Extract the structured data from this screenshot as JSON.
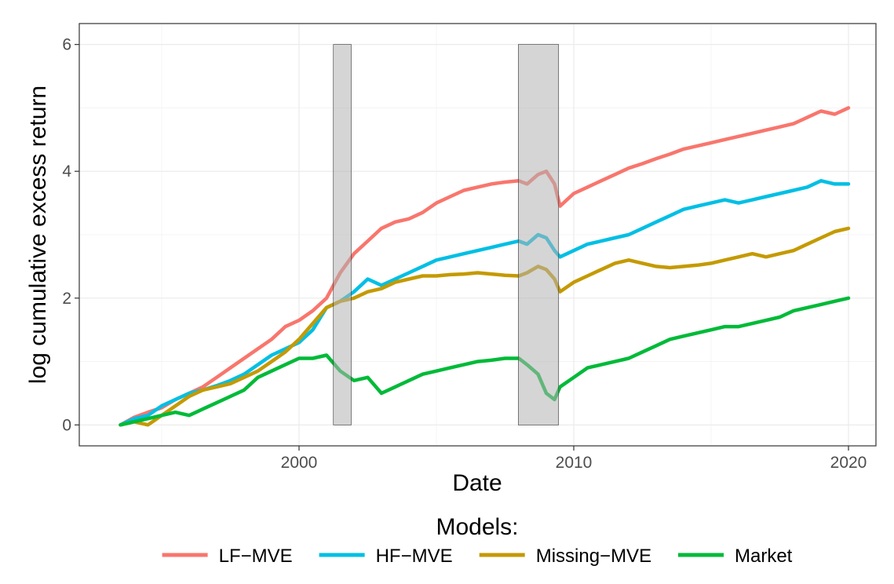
{
  "chart_data": {
    "type": "line",
    "xlabel": "Date",
    "ylabel": "log cumulative excess return",
    "xlim": [
      1992.0,
      2021.0
    ],
    "ylim": [
      -0.33,
      6.33
    ],
    "x_ticks": [
      2000,
      2010,
      2020
    ],
    "x_tick_labels": [
      "2000",
      "2010",
      "2020"
    ],
    "y_ticks": [
      0,
      2,
      4,
      6
    ],
    "y_tick_labels": [
      "0",
      "2",
      "4",
      "6"
    ],
    "grid": true,
    "legend": {
      "title": "Models:",
      "position": "bottom"
    },
    "shaded_regions": [
      {
        "start": 2001.25,
        "end": 2001.9
      },
      {
        "start": 2007.98,
        "end": 2009.45
      }
    ],
    "series": [
      {
        "name": "LF−MVE",
        "color": "#F8766D",
        "x": [
          1993.5,
          1994,
          1994.5,
          1995,
          1995.5,
          1996,
          1996.5,
          1997,
          1997.5,
          1998,
          1998.5,
          1999,
          1999.5,
          2000,
          2000.5,
          2001,
          2001.5,
          2002,
          2002.5,
          2003,
          2003.5,
          2004,
          2004.5,
          2005,
          2005.5,
          2006,
          2006.5,
          2007,
          2007.5,
          2008,
          2008.3,
          2008.7,
          2009,
          2009.3,
          2009.5,
          2010,
          2010.5,
          2011,
          2011.5,
          2012,
          2012.5,
          2013,
          2013.5,
          2014,
          2014.5,
          2015,
          2015.5,
          2016,
          2016.5,
          2017,
          2017.5,
          2018,
          2018.5,
          2019,
          2019.5,
          2020
        ],
        "values": [
          0,
          0.12,
          0.2,
          0.27,
          0.4,
          0.5,
          0.6,
          0.75,
          0.9,
          1.05,
          1.2,
          1.35,
          1.55,
          1.65,
          1.8,
          2.0,
          2.4,
          2.7,
          2.9,
          3.1,
          3.2,
          3.25,
          3.35,
          3.5,
          3.6,
          3.7,
          3.75,
          3.8,
          3.83,
          3.85,
          3.8,
          3.95,
          4.0,
          3.8,
          3.45,
          3.65,
          3.75,
          3.85,
          3.95,
          4.05,
          4.12,
          4.2,
          4.27,
          4.35,
          4.4,
          4.45,
          4.5,
          4.55,
          4.6,
          4.65,
          4.7,
          4.75,
          4.85,
          4.95,
          4.9,
          5.0
        ]
      },
      {
        "name": "HF−MVE",
        "color": "#00BFE4",
        "x": [
          1993.5,
          1994,
          1994.5,
          1995,
          1995.5,
          1996,
          1996.5,
          1997,
          1997.5,
          1998,
          1998.5,
          1999,
          1999.5,
          2000,
          2000.5,
          2001,
          2001.5,
          2002,
          2002.5,
          2003,
          2003.5,
          2004,
          2004.5,
          2005,
          2005.5,
          2006,
          2006.5,
          2007,
          2007.5,
          2008,
          2008.3,
          2008.7,
          2009,
          2009.3,
          2009.5,
          2010,
          2010.5,
          2011,
          2011.5,
          2012,
          2012.5,
          2013,
          2013.5,
          2014,
          2014.5,
          2015,
          2015.5,
          2016,
          2016.5,
          2017,
          2017.5,
          2018,
          2018.5,
          2019,
          2019.5,
          2020
        ],
        "values": [
          0,
          0.1,
          0.15,
          0.3,
          0.4,
          0.5,
          0.55,
          0.62,
          0.7,
          0.8,
          0.95,
          1.1,
          1.2,
          1.3,
          1.5,
          1.85,
          1.95,
          2.1,
          2.3,
          2.2,
          2.3,
          2.4,
          2.5,
          2.6,
          2.65,
          2.7,
          2.75,
          2.8,
          2.85,
          2.9,
          2.85,
          3.0,
          2.95,
          2.75,
          2.65,
          2.75,
          2.85,
          2.9,
          2.95,
          3.0,
          3.1,
          3.2,
          3.3,
          3.4,
          3.45,
          3.5,
          3.55,
          3.5,
          3.55,
          3.6,
          3.65,
          3.7,
          3.75,
          3.85,
          3.8,
          3.8
        ]
      },
      {
        "name": "Missing−MVE",
        "color": "#C49A00",
        "x": [
          1993.5,
          1994,
          1994.5,
          1995,
          1995.5,
          1996,
          1996.5,
          1997,
          1997.5,
          1998,
          1998.5,
          1999,
          1999.5,
          2000,
          2000.5,
          2001,
          2001.5,
          2002,
          2002.5,
          2003,
          2003.5,
          2004,
          2004.5,
          2005,
          2005.5,
          2006,
          2006.5,
          2007,
          2007.5,
          2008,
          2008.3,
          2008.7,
          2009,
          2009.3,
          2009.5,
          2010,
          2010.5,
          2011,
          2011.5,
          2012,
          2012.5,
          2013,
          2013.5,
          2014,
          2014.5,
          2015,
          2015.5,
          2016,
          2016.5,
          2017,
          2017.5,
          2018,
          2018.5,
          2019,
          2019.5,
          2020
        ],
        "values": [
          0,
          0.05,
          0.0,
          0.15,
          0.3,
          0.45,
          0.55,
          0.6,
          0.65,
          0.75,
          0.85,
          1.0,
          1.15,
          1.35,
          1.6,
          1.85,
          1.95,
          2.0,
          2.1,
          2.15,
          2.25,
          2.3,
          2.35,
          2.35,
          2.37,
          2.38,
          2.4,
          2.38,
          2.36,
          2.35,
          2.4,
          2.5,
          2.45,
          2.3,
          2.1,
          2.25,
          2.35,
          2.45,
          2.55,
          2.6,
          2.55,
          2.5,
          2.48,
          2.5,
          2.52,
          2.55,
          2.6,
          2.65,
          2.7,
          2.65,
          2.7,
          2.75,
          2.85,
          2.95,
          3.05,
          3.1
        ]
      },
      {
        "name": "Market",
        "color": "#00BA38",
        "x": [
          1993.5,
          1994,
          1994.5,
          1995,
          1995.5,
          1996,
          1996.5,
          1997,
          1997.5,
          1998,
          1998.5,
          1999,
          1999.5,
          2000,
          2000.5,
          2001,
          2001.5,
          2002,
          2002.5,
          2003,
          2003.5,
          2004,
          2004.5,
          2005,
          2005.5,
          2006,
          2006.5,
          2007,
          2007.5,
          2008,
          2008.3,
          2008.7,
          2009,
          2009.3,
          2009.5,
          2010,
          2010.5,
          2011,
          2011.5,
          2012,
          2012.5,
          2013,
          2013.5,
          2014,
          2014.5,
          2015,
          2015.5,
          2016,
          2016.5,
          2017,
          2017.5,
          2018,
          2018.5,
          2019,
          2019.5,
          2020
        ],
        "values": [
          0,
          0.05,
          0.1,
          0.15,
          0.2,
          0.15,
          0.25,
          0.35,
          0.45,
          0.55,
          0.75,
          0.85,
          0.95,
          1.05,
          1.05,
          1.1,
          0.85,
          0.7,
          0.75,
          0.5,
          0.6,
          0.7,
          0.8,
          0.85,
          0.9,
          0.95,
          1.0,
          1.02,
          1.05,
          1.05,
          0.95,
          0.8,
          0.5,
          0.4,
          0.6,
          0.75,
          0.9,
          0.95,
          1.0,
          1.05,
          1.15,
          1.25,
          1.35,
          1.4,
          1.45,
          1.5,
          1.55,
          1.55,
          1.6,
          1.65,
          1.7,
          1.8,
          1.85,
          1.9,
          1.95,
          2.0
        ]
      }
    ]
  }
}
